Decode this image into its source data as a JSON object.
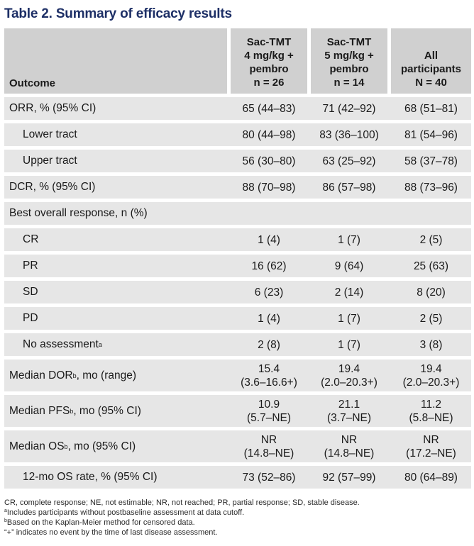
{
  "title": "Table 2. Summary of efficacy results",
  "header": {
    "outcome": "Outcome",
    "col1": [
      "Sac-TMT",
      "4 mg/kg +",
      "pembro",
      "n = 26"
    ],
    "col2": [
      "Sac-TMT",
      "5 mg/kg +",
      "pembro",
      "n = 14"
    ],
    "col3": [
      "All",
      "participants",
      "N = 40"
    ]
  },
  "rows": [
    {
      "label": "ORR, % (95% CI)",
      "v1": "65 (44–83)",
      "v2": "71 (42–92)",
      "v3": "68 (51–81)"
    },
    {
      "label": "Lower tract",
      "v1": "80 (44–98)",
      "v2": "83 (36–100)",
      "v3": "81 (54–96)"
    },
    {
      "label": "Upper tract",
      "v1": "56 (30–80)",
      "v2": "63 (25–92)",
      "v3": "58 (37–78)"
    },
    {
      "label": "DCR, % (95% CI)",
      "v1": "88 (70–98)",
      "v2": "86 (57–98)",
      "v3": "88 (73–96)"
    },
    {
      "label": "Best overall response, n (%)",
      "v1": "",
      "v2": "",
      "v3": ""
    },
    {
      "label": "CR",
      "v1": "1 (4)",
      "v2": "1 (7)",
      "v3": "2 (5)"
    },
    {
      "label": "PR",
      "v1": "16 (62)",
      "v2": "9 (64)",
      "v3": "25 (63)"
    },
    {
      "label": "SD",
      "v1": "6 (23)",
      "v2": "2 (14)",
      "v3": "8 (20)"
    },
    {
      "label": "PD",
      "v1": "1 (4)",
      "v2": "1 (7)",
      "v3": "2 (5)"
    },
    {
      "label": "No assessment",
      "sup": "a",
      "v1": "2 (8)",
      "v2": "1 (7)",
      "v3": "3 (8)"
    },
    {
      "label": "Median DOR",
      "sup": "b",
      "label_suffix": ", mo (range)",
      "v1a": "15.4",
      "v1b": "(3.6–16.6+)",
      "v2a": "19.4",
      "v2b": "(2.0–20.3+)",
      "v3a": "19.4",
      "v3b": "(2.0–20.3+)"
    },
    {
      "label": "Median PFS",
      "sup": "b",
      "label_suffix": ", mo (95% CI)",
      "v1a": "10.9",
      "v1b": "(5.7–NE)",
      "v2a": "21.1",
      "v2b": "(3.7–NE)",
      "v3a": "11.2",
      "v3b": "(5.8–NE)"
    },
    {
      "label": "Median OS",
      "sup": "b",
      "label_suffix": ", mo (95% CI)",
      "v1a": "NR",
      "v1b": "(14.8–NE)",
      "v2a": "NR",
      "v2b": "(14.8–NE)",
      "v3a": "NR",
      "v3b": "(17.2–NE)"
    },
    {
      "label": "12-mo OS rate, % (95% CI)",
      "v1": "73 (52–86)",
      "v2": "92 (57–99)",
      "v3": "80 (64–89)"
    }
  ],
  "footnotes": {
    "abbrev": "CR, complete response; NE, not estimable; NR, not reached; PR, partial response; SD, stable disease.",
    "a_mark": "a",
    "a_text": "Includes participants without postbaseline assessment at data cutoff.",
    "b_mark": "b",
    "b_text": "Based on the Kaplan-Meier method for censored data.",
    "plus": "“+” indicates no event by the time of last disease assessment."
  }
}
